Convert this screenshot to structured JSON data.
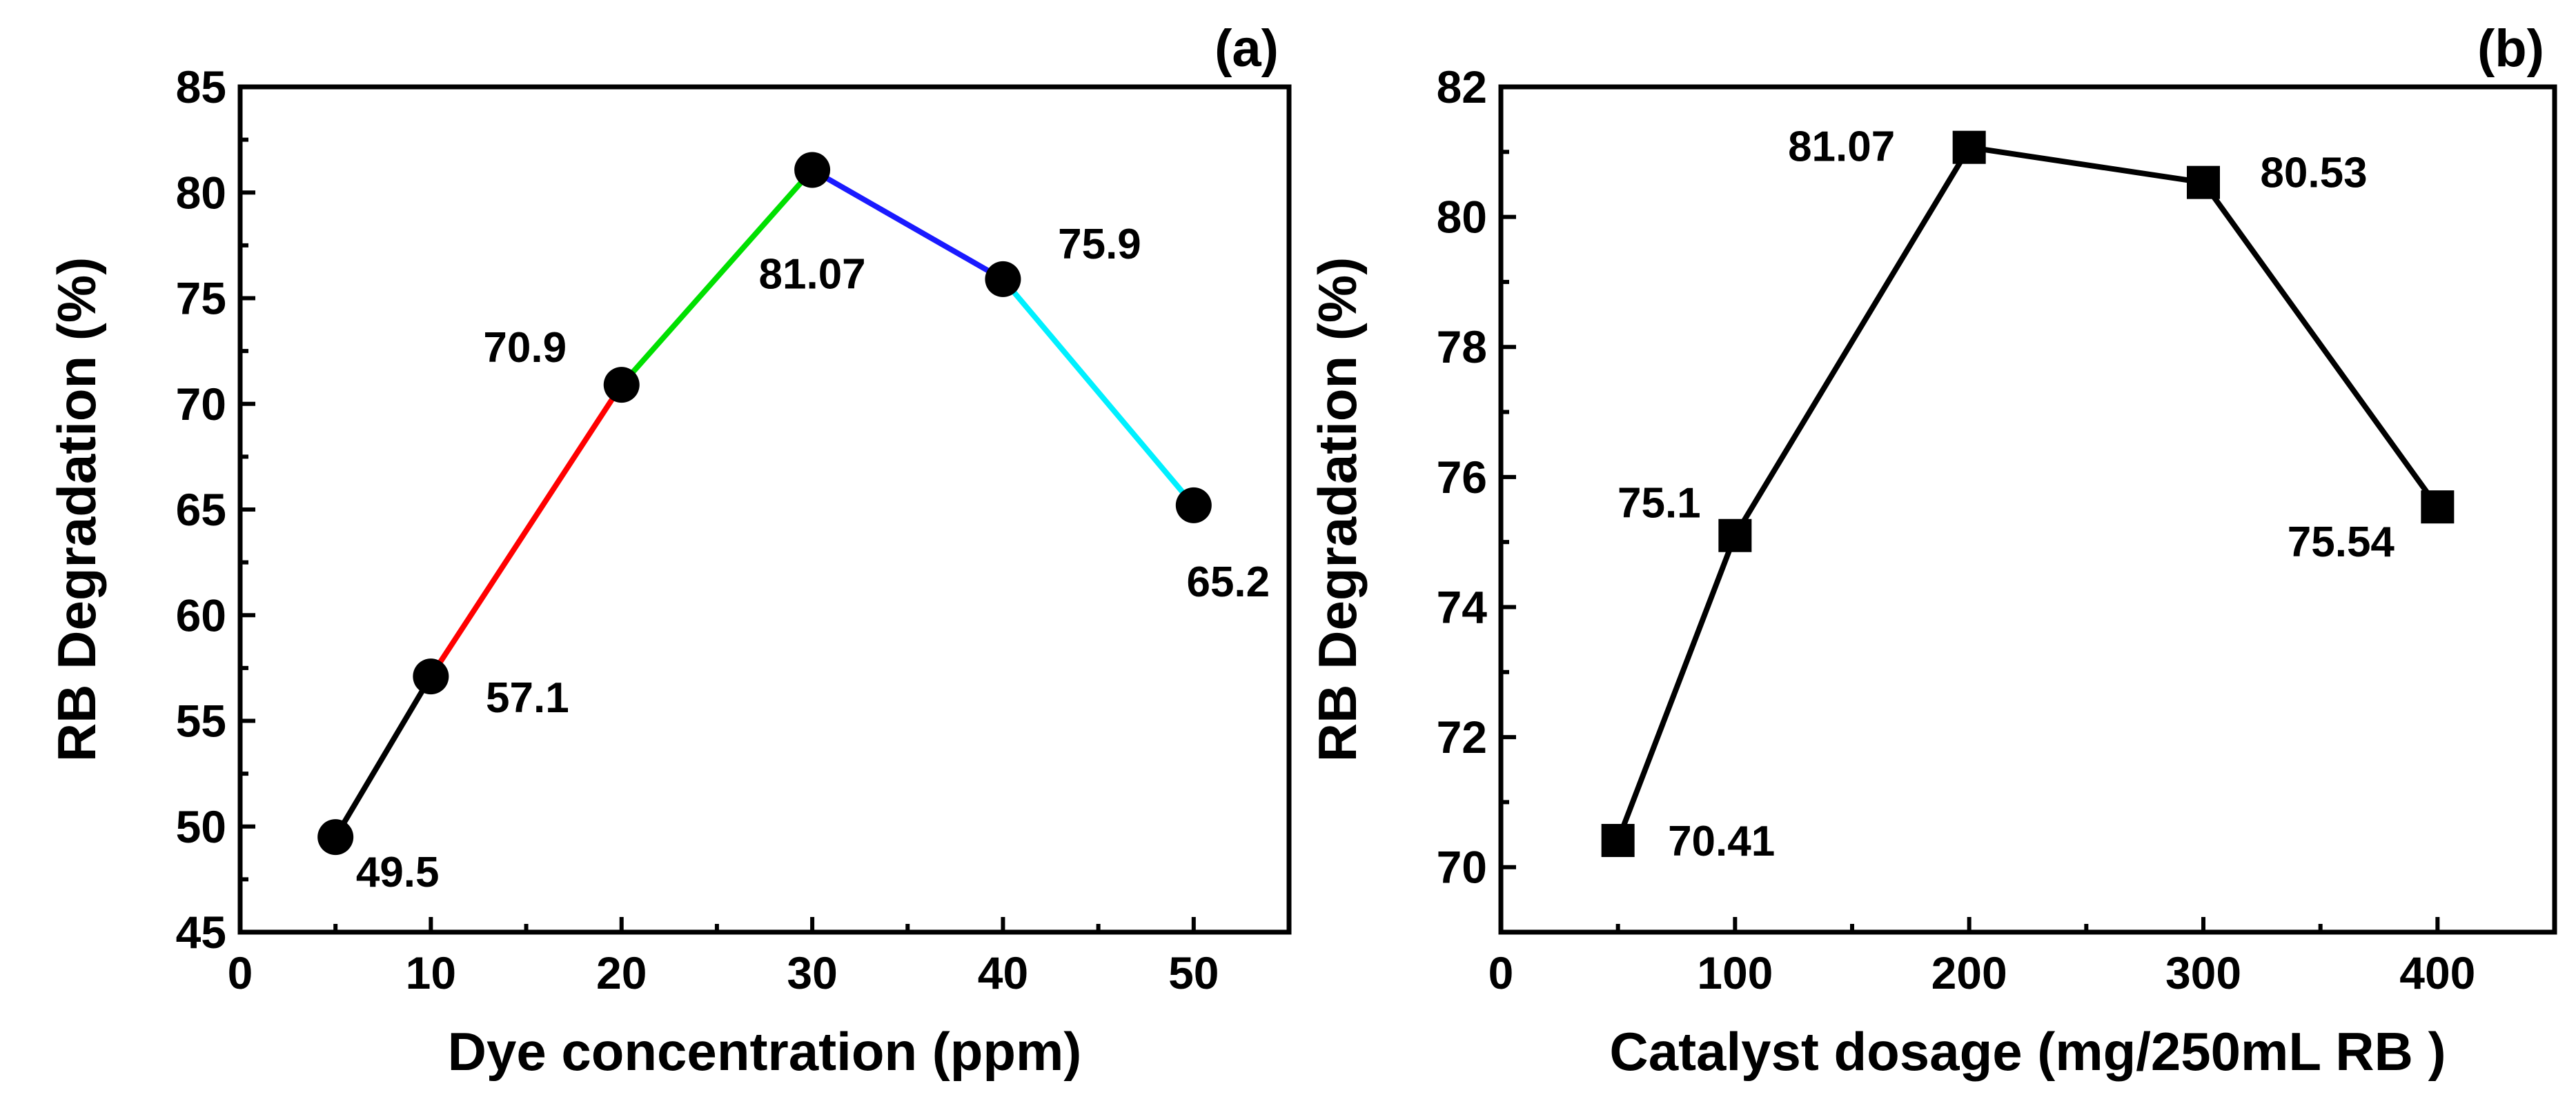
{
  "chart_data": [
    {
      "type": "line",
      "panel_label": "(a)",
      "xlabel": "Dye concentration (ppm)",
      "ylabel": "RB Degradation (%)",
      "xlim": [
        0,
        55
      ],
      "ylim": [
        45,
        85
      ],
      "x_ticks": [
        0,
        10,
        20,
        30,
        40,
        50
      ],
      "y_ticks": [
        45,
        50,
        55,
        60,
        65,
        70,
        75,
        80,
        85
      ],
      "marker": "circle",
      "series": [
        {
          "name": "RB degradation",
          "x": [
            5,
            10,
            20,
            30,
            40,
            50
          ],
          "values": [
            49.5,
            57.1,
            70.9,
            81.07,
            75.9,
            65.2
          ]
        }
      ],
      "segment_colors": [
        "#000000",
        "#ff0000",
        "#00e000",
        "#1a1aff",
        "#00f0ff"
      ],
      "data_labels": [
        "49.5",
        "57.1",
        "70.9",
        "81.07",
        "75.9",
        "65.2"
      ]
    },
    {
      "type": "line",
      "panel_label": "(b)",
      "xlabel": "Catalyst dosage (mg/250mL RB )",
      "ylabel": "RB Degradation (%)",
      "xlim": [
        0,
        450
      ],
      "ylim": [
        69,
        82
      ],
      "x_ticks": [
        0,
        100,
        200,
        300,
        400
      ],
      "y_ticks": [
        70,
        72,
        74,
        76,
        78,
        80,
        82
      ],
      "marker": "square",
      "series": [
        {
          "name": "RB degradation",
          "x": [
            50,
            100,
            200,
            300,
            400
          ],
          "values": [
            70.41,
            75.1,
            81.07,
            80.53,
            75.54
          ]
        }
      ],
      "segment_colors": [
        "#000000",
        "#000000",
        "#000000",
        "#000000"
      ],
      "data_labels": [
        "70.41",
        "75.1",
        "81.07",
        "80.53",
        "75.54"
      ]
    }
  ]
}
